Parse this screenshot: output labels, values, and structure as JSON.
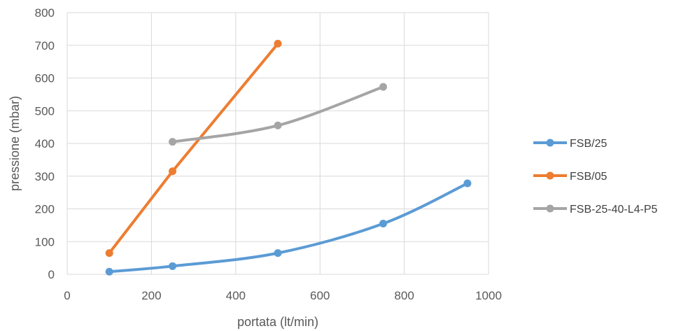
{
  "chart_data": {
    "type": "line",
    "title": "",
    "xlabel": "portata (lt/min)",
    "ylabel": "pressione (mbar)",
    "xlim": [
      0,
      1000
    ],
    "ylim": [
      0,
      800
    ],
    "x_ticks": [
      0,
      200,
      400,
      600,
      800,
      1000
    ],
    "y_ticks": [
      0,
      100,
      200,
      300,
      400,
      500,
      600,
      700,
      800
    ],
    "grid": true,
    "legend_position": "right",
    "series": [
      {
        "name": "FSB/25",
        "color": "#5b9bd5",
        "smooth": true,
        "points": [
          [
            100,
            8
          ],
          [
            250,
            25
          ],
          [
            500,
            65
          ],
          [
            750,
            155
          ],
          [
            950,
            278
          ]
        ]
      },
      {
        "name": "FSB/05",
        "color": "#ed7d31",
        "smooth": false,
        "points": [
          [
            100,
            65
          ],
          [
            250,
            315
          ],
          [
            500,
            705
          ]
        ]
      },
      {
        "name": "FSB-25-40-L4-P5",
        "color": "#a5a5a5",
        "smooth": true,
        "points": [
          [
            250,
            405
          ],
          [
            500,
            455
          ],
          [
            750,
            573
          ]
        ]
      }
    ]
  }
}
